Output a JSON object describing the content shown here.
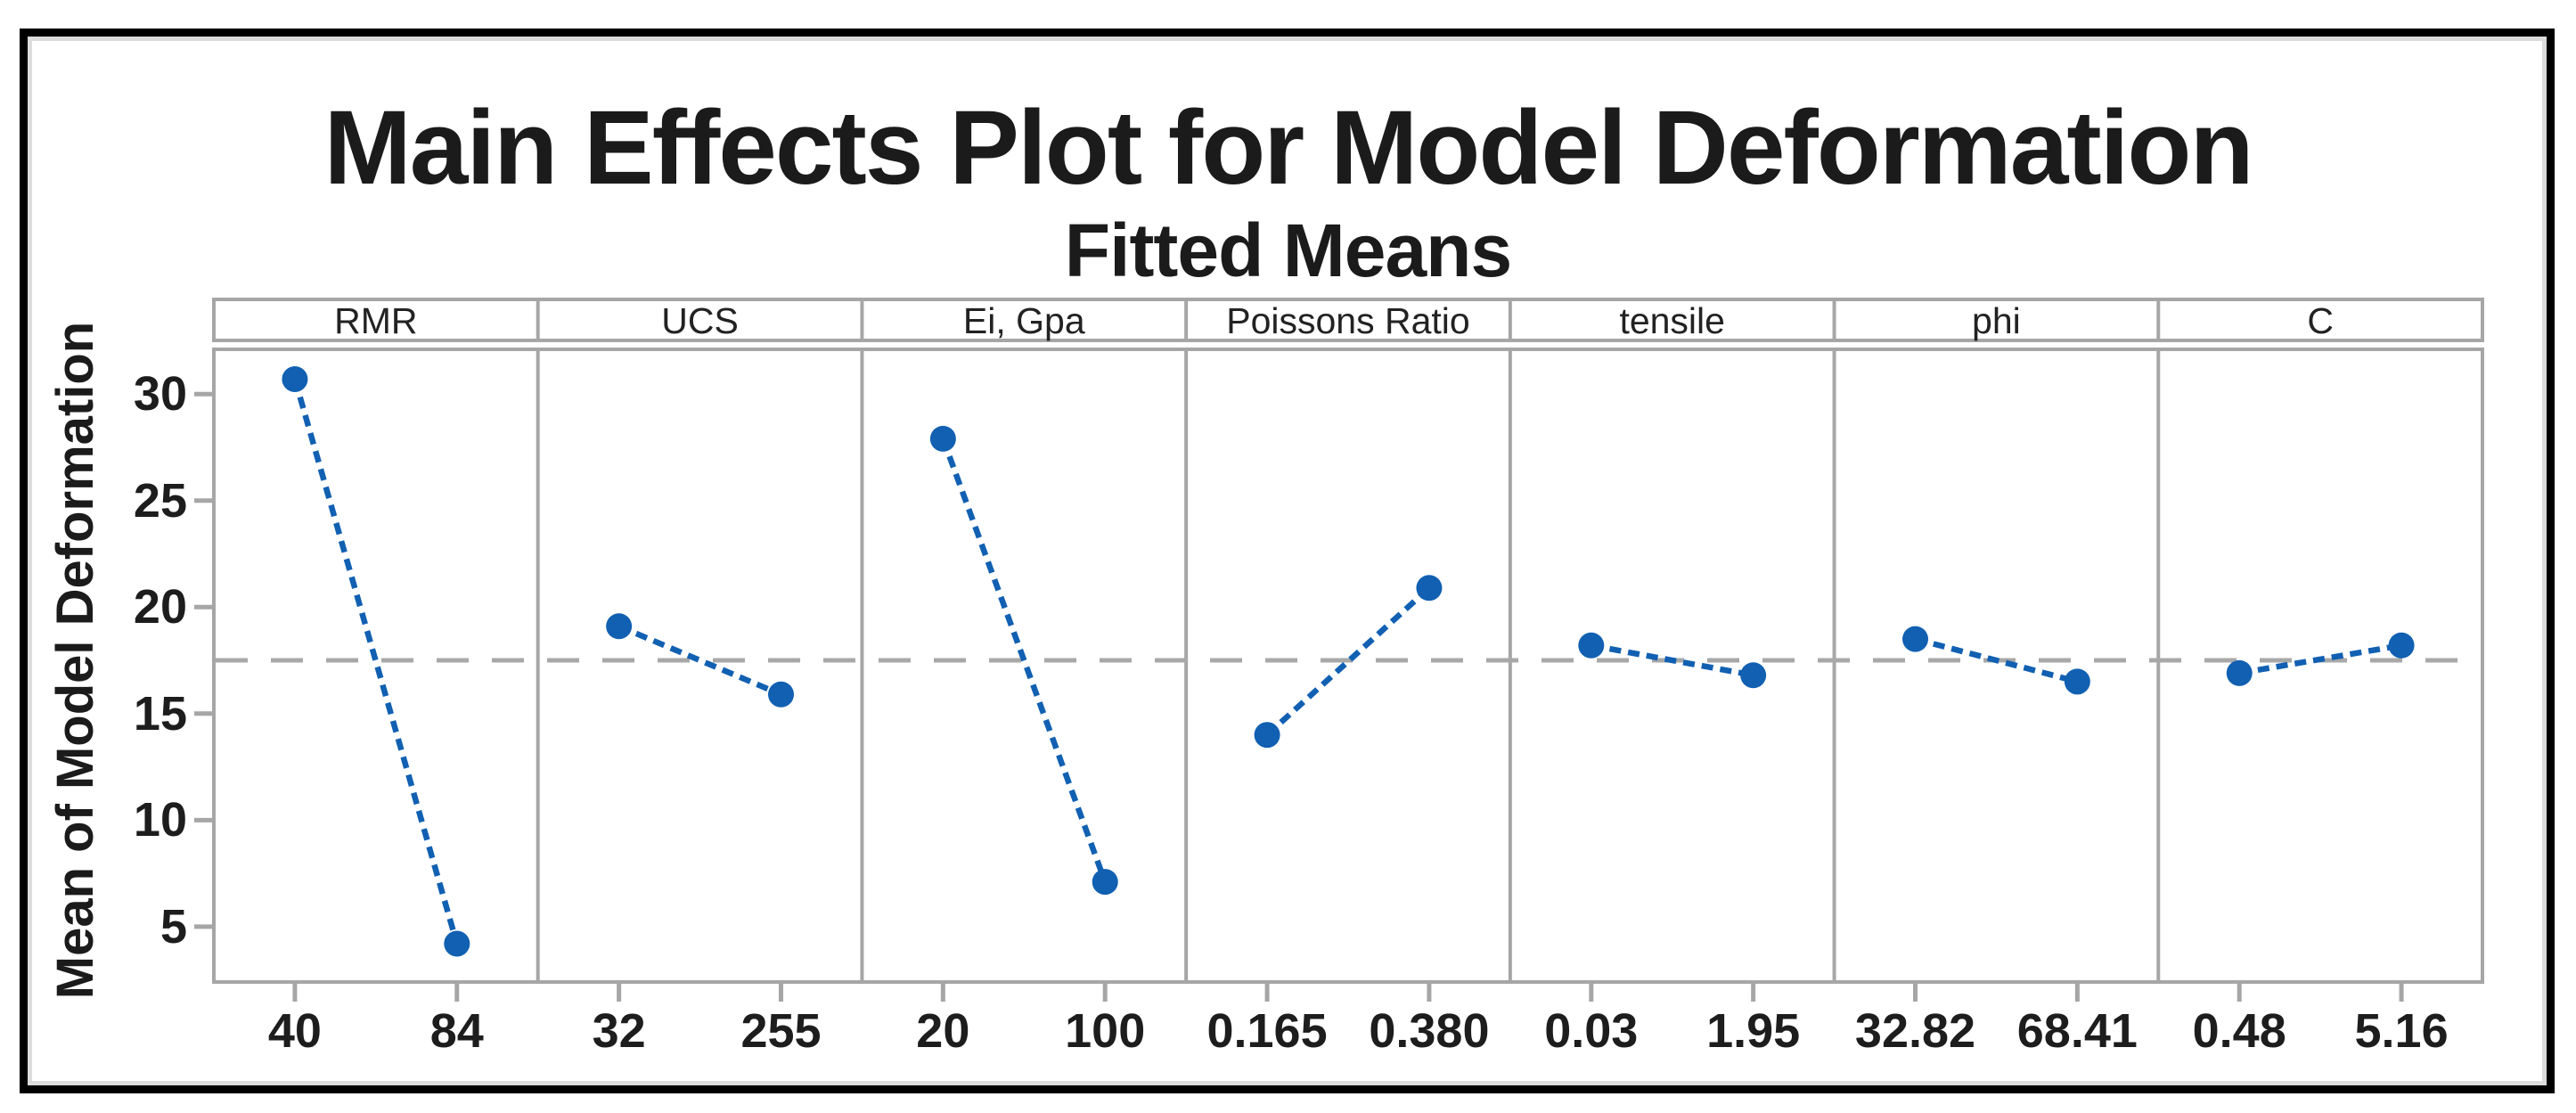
{
  "figure": {
    "title": "Main Effects Plot for Model Deformation",
    "subtitle": "Fitted Means"
  },
  "y_axis": {
    "label": "Mean of Model Deformation"
  },
  "colors": {
    "series": "#1160b2",
    "panel_border": "#a6a6a6",
    "reference_line": "#a8a8a8",
    "frame": "#000000",
    "text": "#1b1b1b"
  },
  "chart_data": {
    "type": "line",
    "title": "Main Effects Plot for Model Deformation",
    "subtitle": "Fitted Means",
    "ylabel": "Mean of Model Deformation",
    "ylim": [
      2.4,
      32.1
    ],
    "yticks": [
      5,
      10,
      15,
      20,
      25,
      30
    ],
    "reference_mean": 17.5,
    "grid": false,
    "legend": "none",
    "panels": [
      {
        "factor": "RMR",
        "levels": [
          "40",
          "84"
        ],
        "means": [
          30.7,
          4.2
        ]
      },
      {
        "factor": "UCS",
        "levels": [
          "32",
          "255"
        ],
        "means": [
          19.1,
          15.9
        ]
      },
      {
        "factor": "Ei, Gpa",
        "levels": [
          "20",
          "100"
        ],
        "means": [
          27.9,
          7.1
        ]
      },
      {
        "factor": "Poissons Ratio",
        "levels": [
          "0.165",
          "0.380"
        ],
        "means": [
          14.0,
          20.9
        ]
      },
      {
        "factor": "tensile",
        "levels": [
          "0.03",
          "1.95"
        ],
        "means": [
          18.2,
          16.8
        ]
      },
      {
        "factor": "phi",
        "levels": [
          "32.82",
          "68.41"
        ],
        "means": [
          18.5,
          16.5
        ]
      },
      {
        "factor": "C",
        "levels": [
          "0.48",
          "5.16"
        ],
        "means": [
          16.9,
          18.2
        ]
      }
    ]
  }
}
